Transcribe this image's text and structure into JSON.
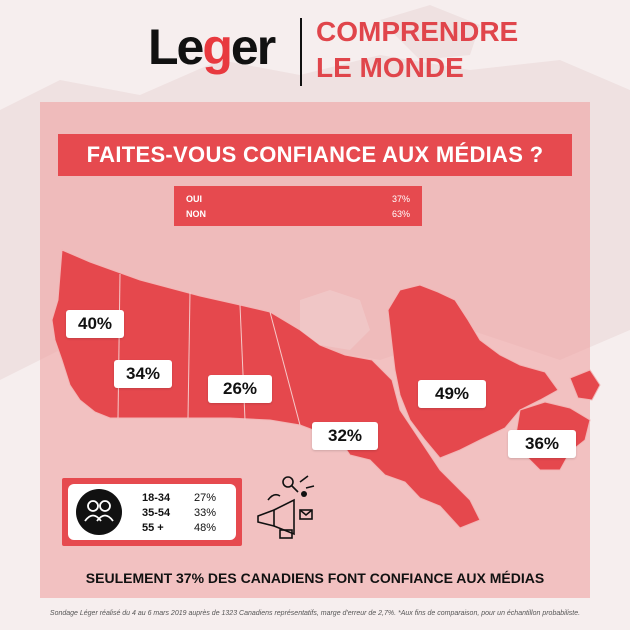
{
  "header": {
    "logo_prefix": "Le",
    "logo_g": "g",
    "logo_suffix": "er",
    "tagline_line1": "COMPRENDRE",
    "tagline_line2": "LE MONDE"
  },
  "question": "FAITES-VOUS CONFIANCE AUX MÉDIAS ?",
  "results": [
    {
      "label": "OUI",
      "value": "37%"
    },
    {
      "label": "NON",
      "value": "63%"
    }
  ],
  "regions": [
    {
      "name": "bc",
      "value": "40%"
    },
    {
      "name": "alberta",
      "value": "34%"
    },
    {
      "name": "prairies",
      "value": "26%"
    },
    {
      "name": "ontario",
      "value": "32%"
    },
    {
      "name": "quebec",
      "value": "49%"
    },
    {
      "name": "atlantic",
      "value": "36%"
    }
  ],
  "age_groups": [
    {
      "age": "18-34",
      "value": "27%"
    },
    {
      "age": "35-54",
      "value": "33%"
    },
    {
      "age": "55 +",
      "value": "48%"
    }
  ],
  "footer_title": "SEULEMENT 37% DES CANADIENS FONT CONFIANCE AUX MÉDIAS",
  "footnote": "Sondage Léger réalisé du 4 au 6 mars 2019 auprès de 1323 Canadiens représentatifs, marge d'erreur de 2,7%. *Aux fins de comparaison, pour un échantillon probabiliste.",
  "colors": {
    "accent": "#e64a4f",
    "map": "#e5484d",
    "background": "#f6eeee"
  },
  "icons": [
    "user-group-icon",
    "megaphone-media-icon",
    "logo-g-swirl-icon"
  ]
}
